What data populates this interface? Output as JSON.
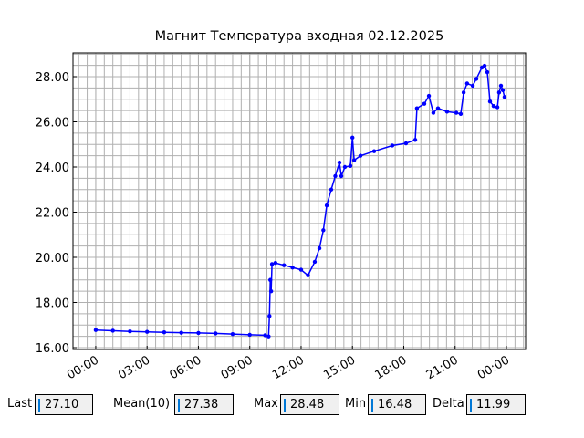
{
  "chart_data": {
    "type": "line",
    "title": "Магнит Температура входная 02.12.2025",
    "x": [
      0,
      1,
      2,
      3,
      4,
      5,
      6,
      7,
      8,
      9,
      9.9,
      10.1,
      10.15,
      10.2,
      10.25,
      10.3,
      10.5,
      11,
      11.5,
      12,
      12.4,
      12.8,
      13.07,
      13.3,
      13.5,
      13.76,
      14.0,
      14.24,
      14.35,
      14.56,
      14.88,
      15.0,
      15.1,
      15.47,
      16.27,
      17.33,
      18.13,
      18.67,
      18.77,
      19.2,
      19.47,
      19.73,
      20.0,
      20.53,
      21.07,
      21.33,
      21.5,
      21.7,
      22.03,
      22.24,
      22.56,
      22.72,
      22.88,
      23.04,
      23.25,
      23.47,
      23.57,
      23.68,
      23.79,
      23.89
    ],
    "series": [
      {
        "color": "#0000ff",
        "values": [
          16.78,
          16.75,
          16.72,
          16.7,
          16.68,
          16.66,
          16.65,
          16.63,
          16.6,
          16.57,
          16.55,
          16.5,
          17.4,
          19.0,
          18.5,
          19.7,
          19.75,
          19.65,
          19.55,
          19.45,
          19.2,
          19.8,
          20.4,
          21.2,
          22.3,
          23.0,
          23.6,
          24.2,
          23.6,
          24.0,
          24.05,
          25.3,
          24.3,
          24.5,
          24.7,
          24.95,
          25.05,
          25.2,
          26.6,
          26.8,
          27.15,
          26.4,
          26.6,
          26.45,
          26.4,
          26.35,
          27.3,
          27.7,
          27.6,
          27.9,
          28.4,
          28.48,
          28.2,
          26.9,
          26.7,
          26.65,
          27.3,
          27.6,
          27.4,
          27.1
        ]
      }
    ],
    "xlim": [
      -1.33,
      25.12
    ],
    "xticks": [
      {
        "value": 0,
        "label": "00:00"
      },
      {
        "value": 3,
        "label": "03:00"
      },
      {
        "value": 6,
        "label": "06:00"
      },
      {
        "value": 9,
        "label": "09:00"
      },
      {
        "value": 12,
        "label": "12:00"
      },
      {
        "value": 15,
        "label": "15:00"
      },
      {
        "value": 18,
        "label": "18:00"
      },
      {
        "value": 21,
        "label": "21:00"
      },
      {
        "value": 24,
        "label": "00:00"
      }
    ],
    "ylim": [
      15.92,
      29.05
    ],
    "yticks": [
      {
        "value": 16,
        "label": "16.00"
      },
      {
        "value": 18,
        "label": "18.00"
      },
      {
        "value": 20,
        "label": "20.00"
      },
      {
        "value": 22,
        "label": "22.00"
      },
      {
        "value": 24,
        "label": "24.00"
      },
      {
        "value": 26,
        "label": "26.00"
      },
      {
        "value": 28,
        "label": "28.00"
      }
    ],
    "grid": true
  },
  "fields": [
    {
      "label": "Last",
      "value": "27.10"
    },
    {
      "label": "Mean(10)",
      "value": "27.38"
    },
    {
      "label": "Max",
      "value": "28.48"
    },
    {
      "label": "Min",
      "value": "16.48"
    },
    {
      "label": "Delta",
      "value": "11.99"
    }
  ]
}
